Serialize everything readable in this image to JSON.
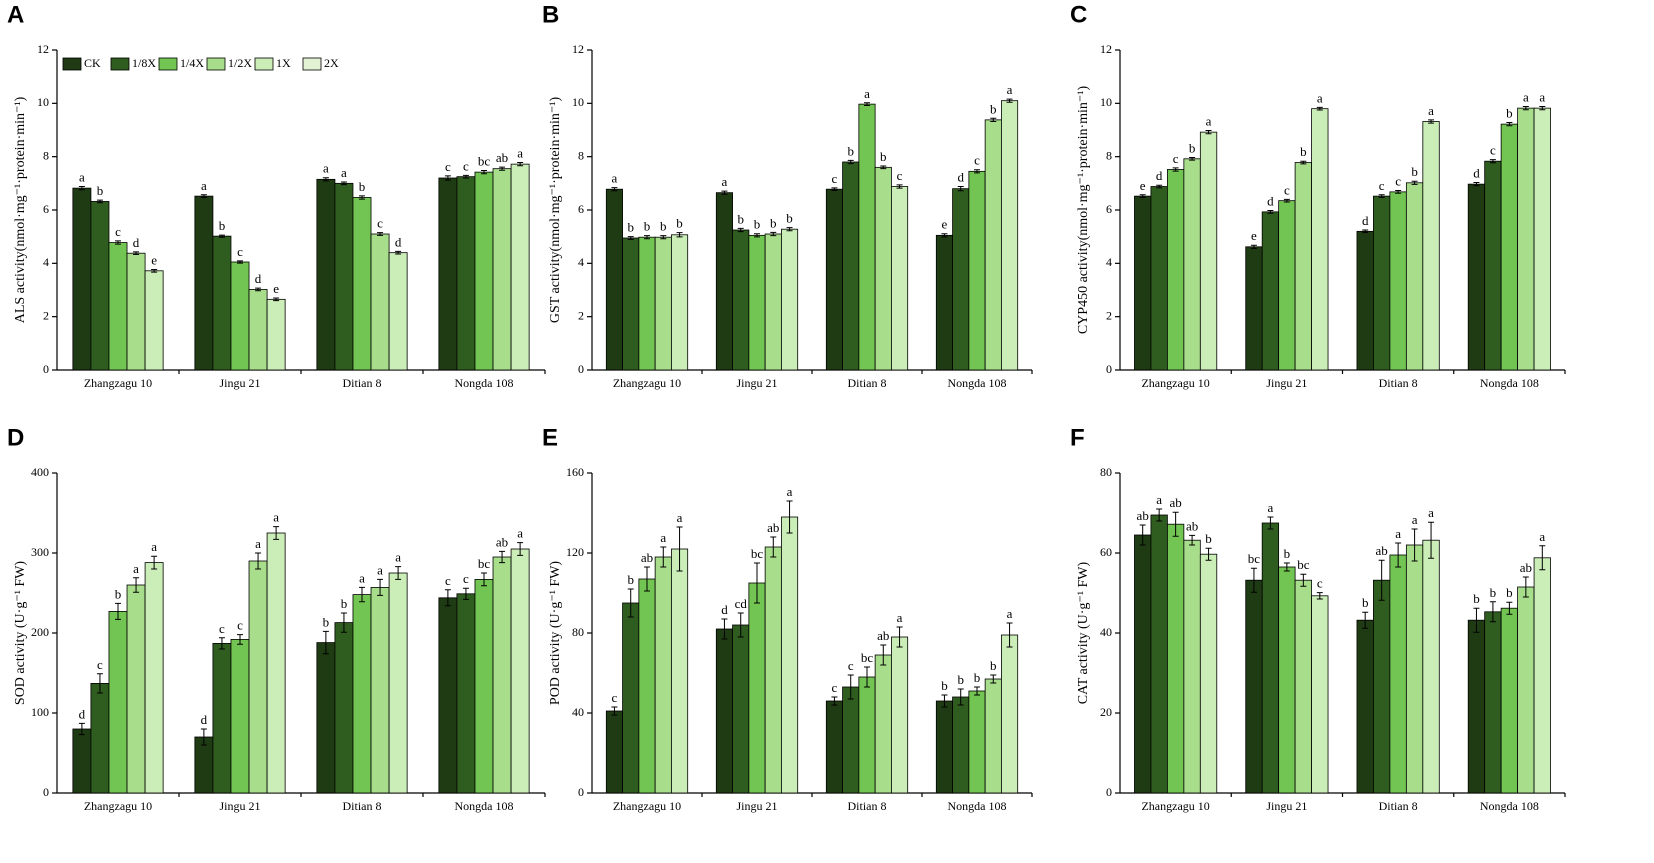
{
  "chart_data": [
    {
      "type": "bar",
      "label": "A",
      "ylabel": "ALS activity(nmol·mg⁻¹·protein·min⁻¹)",
      "ylim": [
        0,
        12
      ],
      "yticks": [
        0,
        2,
        4,
        6,
        8,
        10,
        12
      ],
      "categories": [
        "Zhangzagu 10",
        "Jingu 21",
        "Ditian 8",
        "Nongda 108"
      ],
      "series": [
        {
          "name": "CK",
          "color": "#1f3b13",
          "values": [
            6.82,
            6.52,
            7.15,
            7.2
          ],
          "errors": [
            0.06,
            0.05,
            0.06,
            0.08
          ],
          "labels": [
            "a",
            "a",
            "a",
            "c"
          ]
        },
        {
          "name": "1/8X",
          "color": "#2f5c1f",
          "values": [
            6.32,
            5.02,
            7.0,
            7.25
          ],
          "errors": [
            0.05,
            0.04,
            0.05,
            0.05
          ],
          "labels": [
            "b",
            "b",
            "a",
            "c"
          ]
        },
        {
          "name": "1/4X",
          "color": "#72c552",
          "values": [
            4.78,
            4.05,
            6.47,
            7.42
          ],
          "errors": [
            0.06,
            0.04,
            0.06,
            0.06
          ],
          "labels": [
            "c",
            "c",
            "b",
            "bc"
          ]
        },
        {
          "name": "1/2X",
          "color": "#a8dd8c",
          "values": [
            4.38,
            3.02,
            5.1,
            7.55
          ],
          "errors": [
            0.05,
            0.05,
            0.05,
            0.06
          ],
          "labels": [
            "d",
            "d",
            "c",
            "ab"
          ]
        },
        {
          "name": "1X",
          "color": "#cbedb7",
          "values": [
            3.72,
            2.65,
            4.4,
            7.72
          ],
          "errors": [
            0.05,
            0.05,
            0.05,
            0.06
          ],
          "labels": [
            "e",
            "e",
            "d",
            "a"
          ]
        },
        {
          "name": "2X",
          "color": "#e3f2d2",
          "values": [
            null,
            null,
            null,
            null
          ],
          "errors": [
            null,
            null,
            null,
            null
          ],
          "labels": [
            null,
            null,
            null,
            null
          ]
        }
      ]
    },
    {
      "type": "bar",
      "label": "B",
      "ylabel": "GST activity(nmol·mg⁻¹·protein·min⁻¹)",
      "ylim": [
        0,
        12
      ],
      "yticks": [
        0,
        2,
        4,
        6,
        8,
        10,
        12
      ],
      "categories": [
        "Zhangzagu 10",
        "Jingu 21",
        "Ditian 8",
        "Nongda 108"
      ],
      "series": [
        {
          "color": "#1f3b13",
          "values": [
            6.78,
            6.65,
            6.78,
            5.05
          ],
          "errors": [
            0.06,
            0.06,
            0.05,
            0.06
          ],
          "labels": [
            "a",
            "a",
            "c",
            "e"
          ]
        },
        {
          "color": "#2f5c1f",
          "values": [
            4.95,
            5.25,
            7.8,
            6.8
          ],
          "errors": [
            0.05,
            0.06,
            0.06,
            0.08
          ],
          "labels": [
            "b",
            "b",
            "b",
            "d"
          ]
        },
        {
          "color": "#72c552",
          "values": [
            4.98,
            5.05,
            9.97,
            7.45
          ],
          "errors": [
            0.06,
            0.06,
            0.05,
            0.06
          ],
          "labels": [
            "b",
            "b",
            "a",
            "c"
          ]
        },
        {
          "color": "#a8dd8c",
          "values": [
            4.98,
            5.1,
            7.6,
            9.38
          ],
          "errors": [
            0.06,
            0.06,
            0.05,
            0.06
          ],
          "labels": [
            "b",
            "b",
            "b",
            "b"
          ]
        },
        {
          "color": "#cbedb7",
          "values": [
            5.07,
            5.28,
            6.88,
            10.1
          ],
          "errors": [
            0.08,
            0.06,
            0.06,
            0.06
          ],
          "labels": [
            "b",
            "b",
            "c",
            "a"
          ]
        }
      ]
    },
    {
      "type": "bar",
      "label": "C",
      "ylabel": "CYP450 activity(nmol·mg⁻¹·protein·min⁻¹)",
      "ylim": [
        0,
        12
      ],
      "yticks": [
        0,
        2,
        4,
        6,
        8,
        10,
        12
      ],
      "categories": [
        "Zhangzagu 10",
        "Jingu 21",
        "Ditian 8",
        "Nongda 108"
      ],
      "series": [
        {
          "color": "#1f3b13",
          "values": [
            6.52,
            4.62,
            5.2,
            6.97
          ],
          "errors": [
            0.05,
            0.06,
            0.05,
            0.06
          ],
          "labels": [
            "e",
            "e",
            "d",
            "d"
          ]
        },
        {
          "color": "#2f5c1f",
          "values": [
            6.88,
            5.93,
            6.52,
            7.83
          ],
          "errors": [
            0.05,
            0.05,
            0.05,
            0.06
          ],
          "labels": [
            "d",
            "d",
            "c",
            "c"
          ]
        },
        {
          "color": "#72c552",
          "values": [
            7.52,
            6.35,
            6.68,
            9.22
          ],
          "errors": [
            0.06,
            0.05,
            0.05,
            0.06
          ],
          "labels": [
            "c",
            "c",
            "c",
            "b"
          ]
        },
        {
          "color": "#a8dd8c",
          "values": [
            7.92,
            7.78,
            7.02,
            9.82
          ],
          "errors": [
            0.05,
            0.05,
            0.06,
            0.06
          ],
          "labels": [
            "b",
            "b",
            "b",
            "a"
          ]
        },
        {
          "color": "#cbedb7",
          "values": [
            8.92,
            9.8,
            9.32,
            9.82
          ],
          "errors": [
            0.06,
            0.05,
            0.06,
            0.06
          ],
          "labels": [
            "a",
            "a",
            "a",
            "a"
          ]
        }
      ]
    },
    {
      "type": "bar",
      "label": "D",
      "ylabel": "SOD activity (U·g⁻¹ FW)",
      "ylim": [
        0,
        400
      ],
      "yticks": [
        0,
        100,
        200,
        300,
        400
      ],
      "categories": [
        "Zhangzagu 10",
        "Jingu 21",
        "Ditian 8",
        "Nongda 108"
      ],
      "series": [
        {
          "color": "#1f3b13",
          "values": [
            80,
            70,
            188,
            244
          ],
          "errors": [
            7,
            10,
            14,
            10
          ],
          "labels": [
            "d",
            "d",
            "b",
            "c"
          ]
        },
        {
          "color": "#2f5c1f",
          "values": [
            137,
            187,
            213,
            249
          ],
          "errors": [
            12,
            7,
            12,
            7
          ],
          "labels": [
            "c",
            "c",
            "b",
            "c"
          ]
        },
        {
          "color": "#72c552",
          "values": [
            227,
            192,
            248,
            267
          ],
          "errors": [
            10,
            6,
            9,
            8
          ],
          "labels": [
            "b",
            "c",
            "a",
            "bc"
          ]
        },
        {
          "color": "#a8dd8c",
          "values": [
            260,
            290,
            257,
            295
          ],
          "errors": [
            9,
            10,
            10,
            7
          ],
          "labels": [
            "a",
            "a",
            "a",
            "ab"
          ]
        },
        {
          "color": "#cbedb7",
          "values": [
            288,
            325,
            275,
            305
          ],
          "errors": [
            8,
            8,
            8,
            8
          ],
          "labels": [
            "a",
            "a",
            "a",
            "a"
          ]
        }
      ]
    },
    {
      "type": "bar",
      "label": "E",
      "ylabel": "POD activity (U·g⁻¹ FW)",
      "ylim": [
        0,
        160
      ],
      "yticks": [
        0,
        40,
        80,
        120,
        160
      ],
      "categories": [
        "Zhangzagu 10",
        "Jingu 21",
        "Ditian 8",
        "Nongda 108"
      ],
      "series": [
        {
          "color": "#1f3b13",
          "values": [
            41,
            82,
            46,
            46
          ],
          "errors": [
            2,
            5,
            2,
            3
          ],
          "labels": [
            "c",
            "d",
            "c",
            "b"
          ]
        },
        {
          "color": "#2f5c1f",
          "values": [
            95,
            84,
            53,
            48
          ],
          "errors": [
            7,
            6,
            6,
            4
          ],
          "labels": [
            "b",
            "cd",
            "c",
            "b"
          ]
        },
        {
          "color": "#72c552",
          "values": [
            107,
            105,
            58,
            51
          ],
          "errors": [
            6,
            10,
            5,
            2
          ],
          "labels": [
            "ab",
            "bc",
            "bc",
            "b"
          ]
        },
        {
          "color": "#a8dd8c",
          "values": [
            118,
            123,
            69,
            57
          ],
          "errors": [
            5,
            5,
            5,
            2
          ],
          "labels": [
            "a",
            "ab",
            "ab",
            "b"
          ]
        },
        {
          "color": "#cbedb7",
          "values": [
            122,
            138,
            78,
            79
          ],
          "errors": [
            11,
            8,
            5,
            6
          ],
          "labels": [
            "a",
            "a",
            "a",
            "a"
          ]
        }
      ]
    },
    {
      "type": "bar",
      "label": "F",
      "ylabel": "CAT activity (U·g⁻¹ FW)",
      "ylim": [
        0,
        80
      ],
      "yticks": [
        0,
        20,
        40,
        60,
        80
      ],
      "categories": [
        "Zhangzagu 10",
        "Jingu 21",
        "Ditian 8",
        "Nongda 108"
      ],
      "series": [
        {
          "color": "#1f3b13",
          "values": [
            64.5,
            53.2,
            43.2,
            43.2
          ],
          "errors": [
            2.5,
            3,
            2,
            3
          ],
          "labels": [
            "ab",
            "bc",
            "b",
            "b"
          ]
        },
        {
          "color": "#2f5c1f",
          "values": [
            69.5,
            67.5,
            53.2,
            45.3
          ],
          "errors": [
            1.5,
            1.5,
            5,
            2.5
          ],
          "labels": [
            "a",
            "a",
            "ab",
            "b"
          ]
        },
        {
          "color": "#72c552",
          "values": [
            67.2,
            56.5,
            59.5,
            46.2
          ],
          "errors": [
            3,
            1,
            3,
            1.5
          ],
          "labels": [
            "ab",
            "b",
            "a",
            "b"
          ]
        },
        {
          "color": "#a8dd8c",
          "values": [
            63.2,
            53.2,
            62,
            51.5
          ],
          "errors": [
            1.2,
            1.5,
            4,
            2.5
          ],
          "labels": [
            "ab",
            "bc",
            "a",
            "ab"
          ]
        },
        {
          "color": "#cbedb7",
          "values": [
            59.7,
            49.3,
            63.2,
            58.8
          ],
          "errors": [
            1.5,
            0.8,
            4.5,
            3
          ],
          "labels": [
            "b",
            "c",
            "a",
            "a"
          ]
        }
      ]
    }
  ]
}
